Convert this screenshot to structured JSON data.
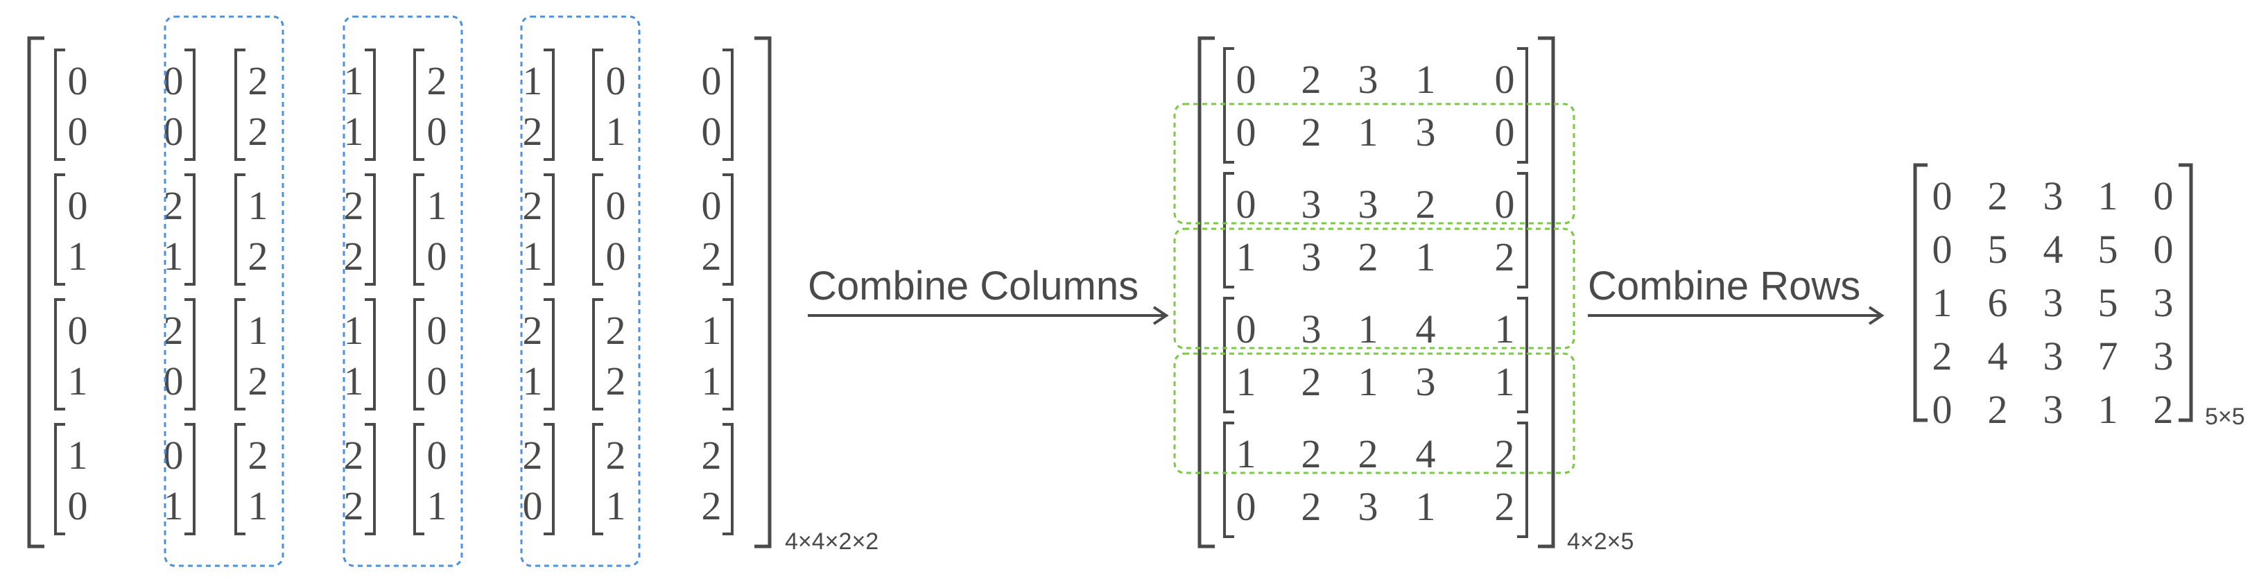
{
  "input": {
    "shape_label": "4×4×2×2",
    "blocks": [
      [
        [
          [
            0,
            0
          ],
          [
            0,
            0
          ]
        ],
        [
          [
            2,
            1
          ],
          [
            2,
            1
          ]
        ],
        [
          [
            2,
            1
          ],
          [
            0,
            2
          ]
        ],
        [
          [
            0,
            0
          ],
          [
            1,
            0
          ]
        ]
      ],
      [
        [
          [
            0,
            2
          ],
          [
            1,
            1
          ]
        ],
        [
          [
            1,
            2
          ],
          [
            2,
            2
          ]
        ],
        [
          [
            1,
            2
          ],
          [
            0,
            1
          ]
        ],
        [
          [
            0,
            0
          ],
          [
            0,
            2
          ]
        ]
      ],
      [
        [
          [
            0,
            2
          ],
          [
            1,
            0
          ]
        ],
        [
          [
            1,
            1
          ],
          [
            2,
            1
          ]
        ],
        [
          [
            0,
            2
          ],
          [
            0,
            1
          ]
        ],
        [
          [
            2,
            1
          ],
          [
            2,
            1
          ]
        ]
      ],
      [
        [
          [
            1,
            0
          ],
          [
            0,
            1
          ]
        ],
        [
          [
            2,
            2
          ],
          [
            1,
            2
          ]
        ],
        [
          [
            0,
            2
          ],
          [
            1,
            0
          ]
        ],
        [
          [
            2,
            2
          ],
          [
            1,
            2
          ]
        ]
      ]
    ]
  },
  "step1": {
    "label": "Combine Columns"
  },
  "middle": {
    "shape_label": "4×2×5",
    "rows": [
      [
        [
          0,
          2,
          3,
          1,
          0
        ],
        [
          0,
          2,
          1,
          3,
          0
        ]
      ],
      [
        [
          0,
          3,
          3,
          2,
          0
        ],
        [
          1,
          3,
          2,
          1,
          2
        ]
      ],
      [
        [
          0,
          3,
          1,
          4,
          1
        ],
        [
          1,
          2,
          1,
          3,
          1
        ]
      ],
      [
        [
          1,
          2,
          2,
          4,
          2
        ],
        [
          0,
          2,
          3,
          1,
          2
        ]
      ]
    ]
  },
  "step2": {
    "label": "Combine Rows"
  },
  "output": {
    "shape_label": "5×5",
    "rows": [
      [
        0,
        2,
        3,
        1,
        0
      ],
      [
        0,
        5,
        4,
        5,
        0
      ],
      [
        1,
        6,
        3,
        5,
        3
      ],
      [
        2,
        4,
        3,
        7,
        3
      ],
      [
        0,
        2,
        3,
        1,
        2
      ]
    ]
  },
  "colors": {
    "text": "#4a4a4a",
    "bracket": "#4a4a4a",
    "column_group_box": "#4a90e2",
    "row_overlap_box": "#7ac943"
  }
}
